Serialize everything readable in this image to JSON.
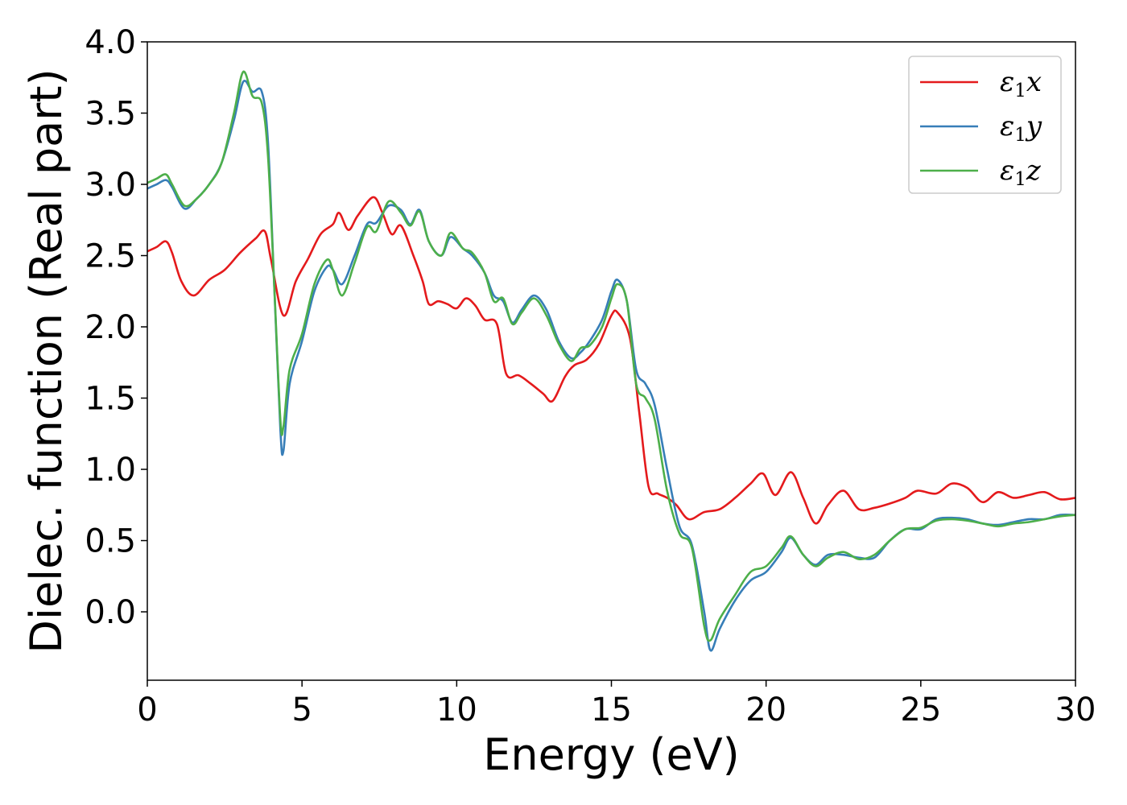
{
  "chart_data": {
    "type": "line",
    "title": "",
    "xlabel": "Energy (eV)",
    "ylabel": "Dielec. function (Real part)",
    "xlim": [
      0,
      30
    ],
    "ylim": [
      -0.48,
      4.0
    ],
    "xticks": [
      0,
      5,
      10,
      15,
      20,
      25,
      30
    ],
    "yticks": [
      "0.0",
      "0.5",
      "1.0",
      "1.5",
      "2.0",
      "2.5",
      "3.0",
      "3.5",
      "4.0"
    ],
    "grid": false,
    "legend_position": "top-right",
    "series": [
      {
        "name": "ε1x",
        "legend_base": "ε",
        "legend_sub": "1",
        "legend_var": "x",
        "color": "#e41a1c",
        "points": [
          [
            0,
            2.53
          ],
          [
            0.3,
            2.56
          ],
          [
            0.6,
            2.6
          ],
          [
            0.8,
            2.52
          ],
          [
            1.1,
            2.32
          ],
          [
            1.5,
            2.22
          ],
          [
            2.0,
            2.33
          ],
          [
            2.5,
            2.4
          ],
          [
            3.0,
            2.52
          ],
          [
            3.5,
            2.62
          ],
          [
            3.8,
            2.67
          ],
          [
            4.0,
            2.47
          ],
          [
            4.4,
            2.08
          ],
          [
            4.8,
            2.32
          ],
          [
            5.2,
            2.48
          ],
          [
            5.6,
            2.65
          ],
          [
            6.0,
            2.72
          ],
          [
            6.2,
            2.8
          ],
          [
            6.5,
            2.68
          ],
          [
            6.8,
            2.78
          ],
          [
            7.3,
            2.91
          ],
          [
            7.6,
            2.8
          ],
          [
            7.9,
            2.65
          ],
          [
            8.2,
            2.71
          ],
          [
            8.6,
            2.5
          ],
          [
            8.9,
            2.32
          ],
          [
            9.1,
            2.16
          ],
          [
            9.4,
            2.18
          ],
          [
            9.7,
            2.16
          ],
          [
            10.0,
            2.13
          ],
          [
            10.3,
            2.2
          ],
          [
            10.6,
            2.15
          ],
          [
            10.9,
            2.05
          ],
          [
            11.3,
            2.02
          ],
          [
            11.6,
            1.67
          ],
          [
            12.0,
            1.66
          ],
          [
            12.4,
            1.6
          ],
          [
            12.8,
            1.53
          ],
          [
            13.1,
            1.48
          ],
          [
            13.5,
            1.65
          ],
          [
            13.8,
            1.73
          ],
          [
            14.2,
            1.77
          ],
          [
            14.6,
            1.88
          ],
          [
            15.0,
            2.08
          ],
          [
            15.2,
            2.1
          ],
          [
            15.6,
            1.92
          ],
          [
            15.9,
            1.4
          ],
          [
            16.2,
            0.88
          ],
          [
            16.5,
            0.83
          ],
          [
            16.8,
            0.8
          ],
          [
            17.1,
            0.75
          ],
          [
            17.5,
            0.65
          ],
          [
            18.0,
            0.7
          ],
          [
            18.5,
            0.72
          ],
          [
            19.0,
            0.8
          ],
          [
            19.5,
            0.9
          ],
          [
            19.9,
            0.97
          ],
          [
            20.3,
            0.82
          ],
          [
            20.8,
            0.98
          ],
          [
            21.2,
            0.8
          ],
          [
            21.6,
            0.62
          ],
          [
            22.0,
            0.75
          ],
          [
            22.5,
            0.85
          ],
          [
            23.0,
            0.72
          ],
          [
            23.5,
            0.73
          ],
          [
            24.0,
            0.76
          ],
          [
            24.5,
            0.8
          ],
          [
            24.9,
            0.85
          ],
          [
            25.5,
            0.83
          ],
          [
            26.0,
            0.9
          ],
          [
            26.5,
            0.87
          ],
          [
            27.0,
            0.77
          ],
          [
            27.5,
            0.84
          ],
          [
            28.0,
            0.8
          ],
          [
            28.5,
            0.82
          ],
          [
            29.0,
            0.84
          ],
          [
            29.5,
            0.79
          ],
          [
            30.0,
            0.8
          ]
        ]
      },
      {
        "name": "ε1y",
        "legend_base": "ε",
        "legend_sub": "1",
        "legend_var": "y",
        "color": "#377eb8",
        "points": [
          [
            0,
            2.97
          ],
          [
            0.3,
            3.0
          ],
          [
            0.6,
            3.03
          ],
          [
            0.8,
            2.98
          ],
          [
            1.2,
            2.83
          ],
          [
            1.6,
            2.9
          ],
          [
            2.0,
            3.0
          ],
          [
            2.4,
            3.15
          ],
          [
            2.8,
            3.45
          ],
          [
            3.1,
            3.72
          ],
          [
            3.4,
            3.65
          ],
          [
            3.7,
            3.65
          ],
          [
            3.9,
            3.3
          ],
          [
            4.1,
            2.3
          ],
          [
            4.3,
            1.28
          ],
          [
            4.4,
            1.13
          ],
          [
            4.6,
            1.6
          ],
          [
            5.0,
            1.9
          ],
          [
            5.4,
            2.25
          ],
          [
            5.8,
            2.42
          ],
          [
            6.0,
            2.4
          ],
          [
            6.3,
            2.3
          ],
          [
            6.7,
            2.5
          ],
          [
            7.1,
            2.72
          ],
          [
            7.4,
            2.73
          ],
          [
            7.8,
            2.85
          ],
          [
            8.2,
            2.82
          ],
          [
            8.5,
            2.72
          ],
          [
            8.8,
            2.82
          ],
          [
            9.1,
            2.6
          ],
          [
            9.5,
            2.5
          ],
          [
            9.8,
            2.63
          ],
          [
            10.2,
            2.55
          ],
          [
            10.5,
            2.5
          ],
          [
            10.9,
            2.38
          ],
          [
            11.2,
            2.22
          ],
          [
            11.5,
            2.18
          ],
          [
            11.8,
            2.03
          ],
          [
            12.1,
            2.12
          ],
          [
            12.5,
            2.22
          ],
          [
            12.9,
            2.12
          ],
          [
            13.3,
            1.9
          ],
          [
            13.7,
            1.78
          ],
          [
            14.0,
            1.82
          ],
          [
            14.3,
            1.9
          ],
          [
            14.7,
            2.05
          ],
          [
            15.0,
            2.25
          ],
          [
            15.2,
            2.33
          ],
          [
            15.5,
            2.18
          ],
          [
            15.8,
            1.7
          ],
          [
            16.1,
            1.6
          ],
          [
            16.4,
            1.45
          ],
          [
            16.8,
            1.0
          ],
          [
            17.2,
            0.6
          ],
          [
            17.6,
            0.47
          ],
          [
            18.0,
            0.0
          ],
          [
            18.2,
            -0.27
          ],
          [
            18.5,
            -0.12
          ],
          [
            19.0,
            0.08
          ],
          [
            19.5,
            0.22
          ],
          [
            20.0,
            0.28
          ],
          [
            20.5,
            0.42
          ],
          [
            20.8,
            0.52
          ],
          [
            21.2,
            0.4
          ],
          [
            21.6,
            0.33
          ],
          [
            22.0,
            0.4
          ],
          [
            22.5,
            0.4
          ],
          [
            23.0,
            0.38
          ],
          [
            23.5,
            0.38
          ],
          [
            24.0,
            0.5
          ],
          [
            24.5,
            0.58
          ],
          [
            25.0,
            0.58
          ],
          [
            25.5,
            0.65
          ],
          [
            26.0,
            0.66
          ],
          [
            26.5,
            0.65
          ],
          [
            27.0,
            0.62
          ],
          [
            27.5,
            0.61
          ],
          [
            28.0,
            0.63
          ],
          [
            28.5,
            0.65
          ],
          [
            29.0,
            0.65
          ],
          [
            29.5,
            0.68
          ],
          [
            30.0,
            0.68
          ]
        ]
      },
      {
        "name": "ε1z",
        "legend_base": "ε",
        "legend_sub": "1",
        "legend_var": "z",
        "color": "#4daf4a",
        "points": [
          [
            0,
            3.01
          ],
          [
            0.3,
            3.04
          ],
          [
            0.6,
            3.07
          ],
          [
            0.8,
            3.0
          ],
          [
            1.2,
            2.85
          ],
          [
            1.6,
            2.9
          ],
          [
            2.0,
            3.0
          ],
          [
            2.4,
            3.15
          ],
          [
            2.8,
            3.5
          ],
          [
            3.1,
            3.79
          ],
          [
            3.4,
            3.62
          ],
          [
            3.7,
            3.57
          ],
          [
            3.9,
            3.2
          ],
          [
            4.1,
            2.3
          ],
          [
            4.3,
            1.35
          ],
          [
            4.4,
            1.3
          ],
          [
            4.6,
            1.7
          ],
          [
            5.0,
            1.95
          ],
          [
            5.4,
            2.3
          ],
          [
            5.8,
            2.47
          ],
          [
            6.0,
            2.4
          ],
          [
            6.3,
            2.22
          ],
          [
            6.7,
            2.45
          ],
          [
            7.1,
            2.7
          ],
          [
            7.4,
            2.67
          ],
          [
            7.8,
            2.88
          ],
          [
            8.2,
            2.8
          ],
          [
            8.5,
            2.71
          ],
          [
            8.8,
            2.81
          ],
          [
            9.1,
            2.6
          ],
          [
            9.5,
            2.5
          ],
          [
            9.8,
            2.66
          ],
          [
            10.2,
            2.55
          ],
          [
            10.5,
            2.52
          ],
          [
            10.9,
            2.38
          ],
          [
            11.2,
            2.18
          ],
          [
            11.5,
            2.2
          ],
          [
            11.8,
            2.02
          ],
          [
            12.1,
            2.1
          ],
          [
            12.5,
            2.2
          ],
          [
            12.9,
            2.08
          ],
          [
            13.3,
            1.88
          ],
          [
            13.7,
            1.76
          ],
          [
            14.0,
            1.85
          ],
          [
            14.3,
            1.87
          ],
          [
            14.7,
            2.0
          ],
          [
            15.0,
            2.2
          ],
          [
            15.2,
            2.3
          ],
          [
            15.5,
            2.18
          ],
          [
            15.8,
            1.6
          ],
          [
            16.1,
            1.5
          ],
          [
            16.4,
            1.35
          ],
          [
            16.8,
            0.85
          ],
          [
            17.2,
            0.55
          ],
          [
            17.6,
            0.45
          ],
          [
            18.0,
            -0.1
          ],
          [
            18.2,
            -0.2
          ],
          [
            18.5,
            -0.05
          ],
          [
            19.0,
            0.12
          ],
          [
            19.5,
            0.28
          ],
          [
            20.0,
            0.32
          ],
          [
            20.5,
            0.45
          ],
          [
            20.8,
            0.53
          ],
          [
            21.2,
            0.4
          ],
          [
            21.6,
            0.32
          ],
          [
            22.0,
            0.38
          ],
          [
            22.5,
            0.42
          ],
          [
            23.0,
            0.37
          ],
          [
            23.5,
            0.4
          ],
          [
            24.0,
            0.5
          ],
          [
            24.5,
            0.58
          ],
          [
            25.0,
            0.59
          ],
          [
            25.5,
            0.64
          ],
          [
            26.0,
            0.65
          ],
          [
            26.5,
            0.64
          ],
          [
            27.0,
            0.62
          ],
          [
            27.5,
            0.6
          ],
          [
            28.0,
            0.62
          ],
          [
            28.5,
            0.63
          ],
          [
            29.0,
            0.65
          ],
          [
            29.5,
            0.67
          ],
          [
            30.0,
            0.68
          ]
        ]
      }
    ]
  }
}
